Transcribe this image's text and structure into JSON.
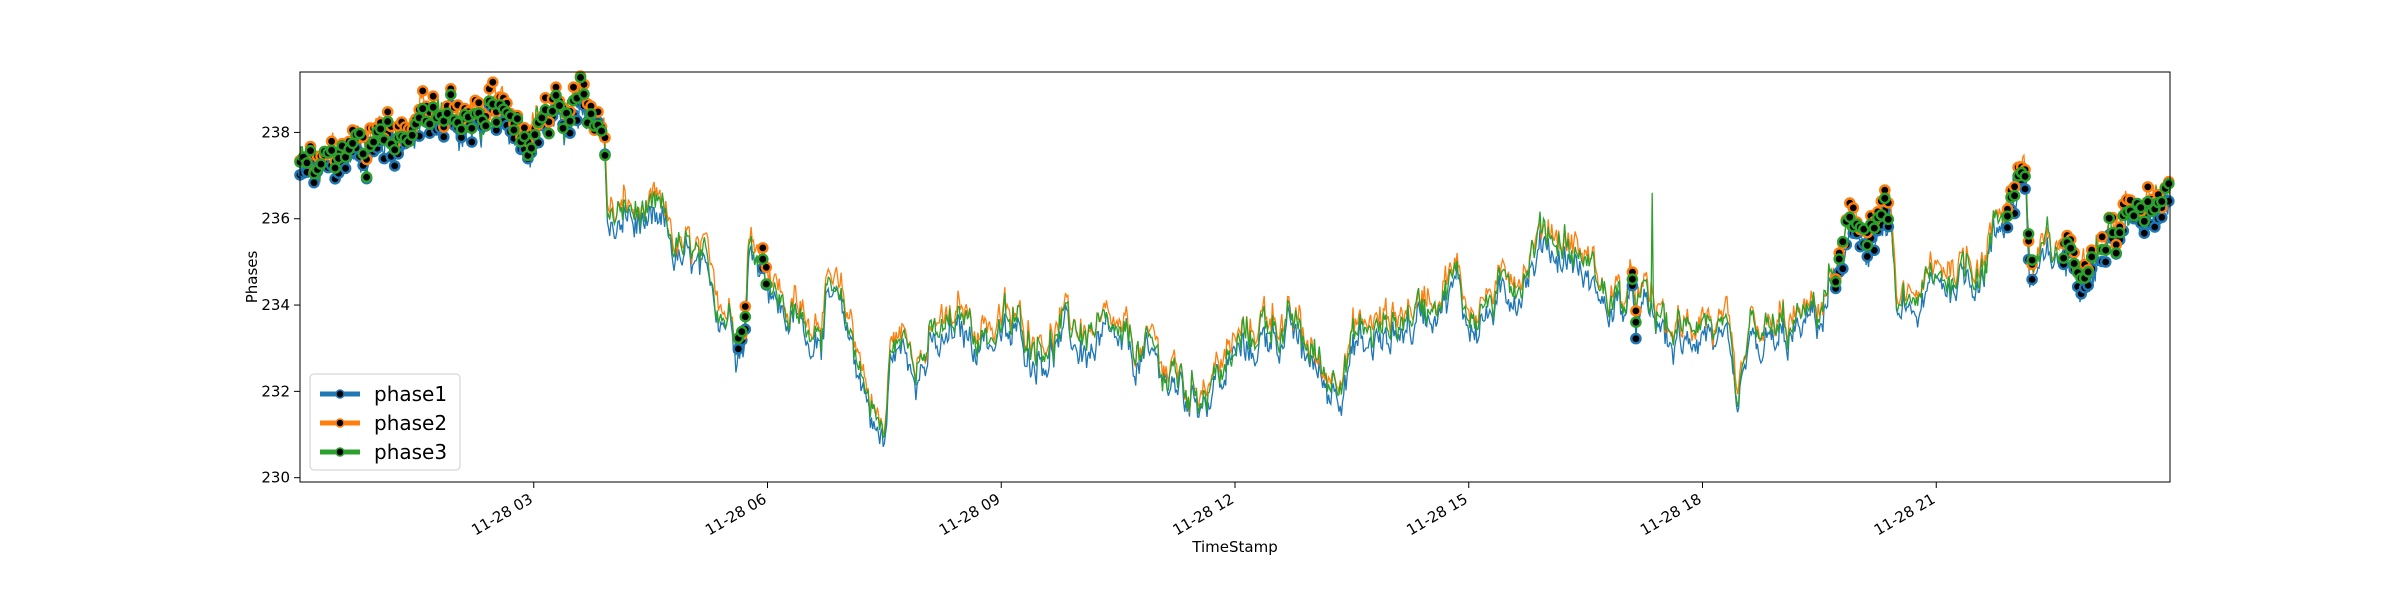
{
  "chart_data": {
    "type": "line",
    "xlabel": "TimeStamp",
    "ylabel": "Phases",
    "x_range": [
      "11-28 00:00",
      "11-29 00:00"
    ],
    "ylim": [
      229.9,
      239.4
    ],
    "y_ticks": [
      230,
      232,
      234,
      236,
      238
    ],
    "x_ticks": [
      {
        "t": 3,
        "label": "11-28 03"
      },
      {
        "t": 6,
        "label": "11-28 06"
      },
      {
        "t": 9,
        "label": "11-28 09"
      },
      {
        "t": 12,
        "label": "11-28 12"
      },
      {
        "t": 15,
        "label": "11-28 15"
      },
      {
        "t": 18,
        "label": "11-28 18"
      },
      {
        "t": 21,
        "label": "11-28 21"
      }
    ],
    "legend_position": "lower-left",
    "grid": false,
    "series": [
      {
        "name": "phase1",
        "color": "#1f77b4",
        "offset": -0.25
      },
      {
        "name": "phase2",
        "color": "#ff7f0e",
        "offset": 0.15
      },
      {
        "name": "phase3",
        "color": "#2ca02c",
        "offset": 0.0
      }
    ],
    "profile": [
      [
        0.0,
        237.2
      ],
      [
        0.25,
        237.0
      ],
      [
        0.5,
        237.4
      ],
      [
        0.8,
        237.8
      ],
      [
        1.2,
        238.1
      ],
      [
        1.6,
        238.3
      ],
      [
        2.0,
        238.4
      ],
      [
        2.5,
        238.3
      ],
      [
        3.0,
        238.4
      ],
      [
        3.5,
        238.4
      ],
      [
        3.9,
        238.3
      ],
      [
        3.95,
        236.0
      ],
      [
        4.3,
        236.1
      ],
      [
        4.6,
        235.8
      ],
      [
        5.0,
        235.0
      ],
      [
        5.4,
        234.2
      ],
      [
        5.7,
        233.5
      ],
      [
        5.75,
        235.5
      ],
      [
        5.95,
        235.3
      ],
      [
        6.2,
        234.0
      ],
      [
        6.5,
        233.5
      ],
      [
        6.8,
        234.2
      ],
      [
        7.1,
        233.2
      ],
      [
        7.3,
        232.0
      ],
      [
        7.5,
        231.0
      ],
      [
        7.6,
        233.2
      ],
      [
        8.0,
        233.0
      ],
      [
        8.5,
        233.5
      ],
      [
        9.0,
        233.5
      ],
      [
        9.5,
        233.3
      ],
      [
        10.0,
        233.4
      ],
      [
        10.5,
        233.0
      ],
      [
        11.0,
        232.8
      ],
      [
        11.4,
        232.0
      ],
      [
        11.8,
        232.5
      ],
      [
        12.2,
        233.2
      ],
      [
        12.5,
        233.8
      ],
      [
        12.9,
        233.0
      ],
      [
        13.2,
        232.3
      ],
      [
        13.5,
        233.2
      ],
      [
        14.0,
        233.5
      ],
      [
        14.4,
        234.0
      ],
      [
        14.8,
        234.8
      ],
      [
        15.0,
        233.8
      ],
      [
        15.4,
        234.2
      ],
      [
        15.8,
        235.2
      ],
      [
        16.0,
        235.8
      ],
      [
        16.5,
        235.0
      ],
      [
        16.8,
        234.2
      ],
      [
        17.2,
        234.0
      ],
      [
        17.5,
        233.5
      ],
      [
        17.8,
        233.2
      ],
      [
        18.0,
        234.0
      ],
      [
        18.3,
        233.0
      ],
      [
        18.45,
        231.2
      ],
      [
        18.6,
        233.0
      ],
      [
        19.0,
        233.3
      ],
      [
        19.5,
        233.8
      ],
      [
        19.8,
        235.2
      ],
      [
        20.1,
        235.7
      ],
      [
        20.4,
        236.0
      ],
      [
        20.5,
        233.6
      ],
      [
        20.8,
        234.2
      ],
      [
        21.2,
        234.8
      ],
      [
        21.6,
        235.2
      ],
      [
        22.0,
        236.8
      ],
      [
        22.15,
        237.2
      ],
      [
        22.2,
        234.8
      ],
      [
        22.6,
        235.2
      ],
      [
        23.0,
        235.4
      ],
      [
        23.4,
        235.8
      ],
      [
        23.7,
        236.6
      ],
      [
        24.0,
        237.1
      ]
    ],
    "marker_ranges": [
      [
        0.0,
        3.95
      ],
      [
        5.6,
        5.75
      ],
      [
        5.9,
        6.0
      ],
      [
        17.1,
        17.15
      ],
      [
        19.7,
        20.4
      ],
      [
        21.9,
        22.25
      ],
      [
        22.6,
        23.0
      ],
      [
        23.1,
        24.0
      ]
    ],
    "spikes": [
      {
        "t": 17.35,
        "series": "phase3",
        "value": 236.6
      }
    ]
  }
}
